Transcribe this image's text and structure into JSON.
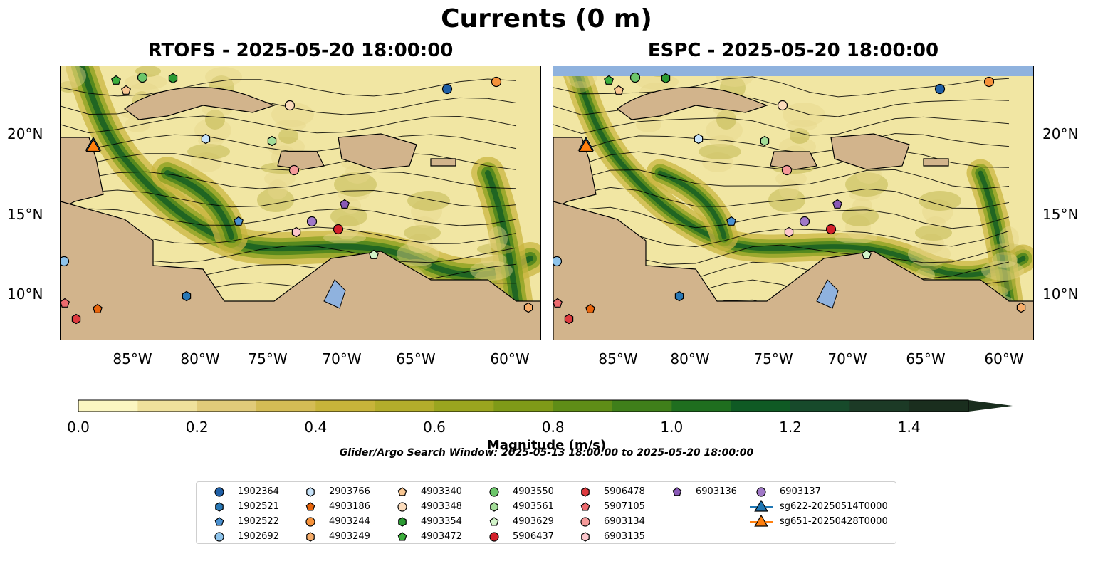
{
  "figure": {
    "title": "Currents (0 m)",
    "left_panel_title": "RTOFS - 2025-05-20 18:00:00",
    "right_panel_title": "ESPC - 2025-05-20 18:00:00",
    "x_ticks": [
      "85°W",
      "80°W",
      "75°W",
      "70°W",
      "65°W",
      "60°W"
    ],
    "y_ticks": [
      "20°N",
      "15°N",
      "10°N"
    ],
    "colorbar": {
      "label": "Magnitude (m/s)",
      "ticks": [
        "0.0",
        "0.2",
        "0.4",
        "0.6",
        "0.8",
        "1.0",
        "1.2",
        "1.4"
      ],
      "range": [
        0.0,
        1.5
      ],
      "colors": [
        "#fbf6c1",
        "#efe19c",
        "#e1cb7a",
        "#d4bc55",
        "#c7b43a",
        "#b3ad2b",
        "#9aa51f",
        "#7f9a18",
        "#5f8d17",
        "#3f7f1a",
        "#1f6e1f",
        "#0f5a24",
        "#174a2b",
        "#1c3a26",
        "#1a2e1e"
      ]
    },
    "search_window": "Glider/Argo Search Window: 2025-05-13 18:00:00 to 2025-05-20 18:00:00",
    "colors": {
      "land": "#d2b48c",
      "lake": "#8fb2de",
      "water_light": "#f1e6a3"
    }
  },
  "legend": [
    {
      "label": "1902364",
      "marker": "circle",
      "color": "#1f5fa6"
    },
    {
      "label": "1902521",
      "marker": "hexagon",
      "color": "#2978b5"
    },
    {
      "label": "1902522",
      "marker": "pentagon",
      "color": "#4a90d0"
    },
    {
      "label": "1902692",
      "marker": "circle",
      "color": "#8ec4ec"
    },
    {
      "label": "2903766",
      "marker": "hexagon",
      "color": "#c7e3fa"
    },
    {
      "label": "4903186",
      "marker": "pentagon",
      "color": "#e8650c"
    },
    {
      "label": "4903244",
      "marker": "circle",
      "color": "#f6923a"
    },
    {
      "label": "4903249",
      "marker": "hexagon",
      "color": "#f7ad6a"
    },
    {
      "label": "4903340",
      "marker": "pentagon",
      "color": "#f9c792"
    },
    {
      "label": "4903348",
      "marker": "circle",
      "color": "#fcdcbc"
    },
    {
      "label": "4903354",
      "marker": "hexagon",
      "color": "#2b9a33"
    },
    {
      "label": "4903472",
      "marker": "pentagon",
      "color": "#3cad3c"
    },
    {
      "label": "4903550",
      "marker": "circle",
      "color": "#6cc66a"
    },
    {
      "label": "4903561",
      "marker": "hexagon",
      "color": "#a3dd98"
    },
    {
      "label": "4903629",
      "marker": "pentagon",
      "color": "#d2f4c9"
    },
    {
      "label": "5906437",
      "marker": "circle",
      "color": "#d3202a"
    },
    {
      "label": "5906478",
      "marker": "hexagon",
      "color": "#de3a3f"
    },
    {
      "label": "5907105",
      "marker": "pentagon",
      "color": "#ec6a6e"
    },
    {
      "label": "6903134",
      "marker": "circle",
      "color": "#f59a9a"
    },
    {
      "label": "6903135",
      "marker": "hexagon",
      "color": "#fcc6cc"
    },
    {
      "label": "6903136",
      "marker": "pentagon",
      "color": "#8a59b7"
    },
    {
      "label": "6903137",
      "marker": "circle",
      "color": "#a179c8"
    },
    {
      "label": "sg622-20250514T0000",
      "marker": "triangle",
      "color": "#1f77b4"
    },
    {
      "label": "sg651-20250428T0000",
      "marker": "triangle",
      "color": "#ff7f0e"
    }
  ]
}
